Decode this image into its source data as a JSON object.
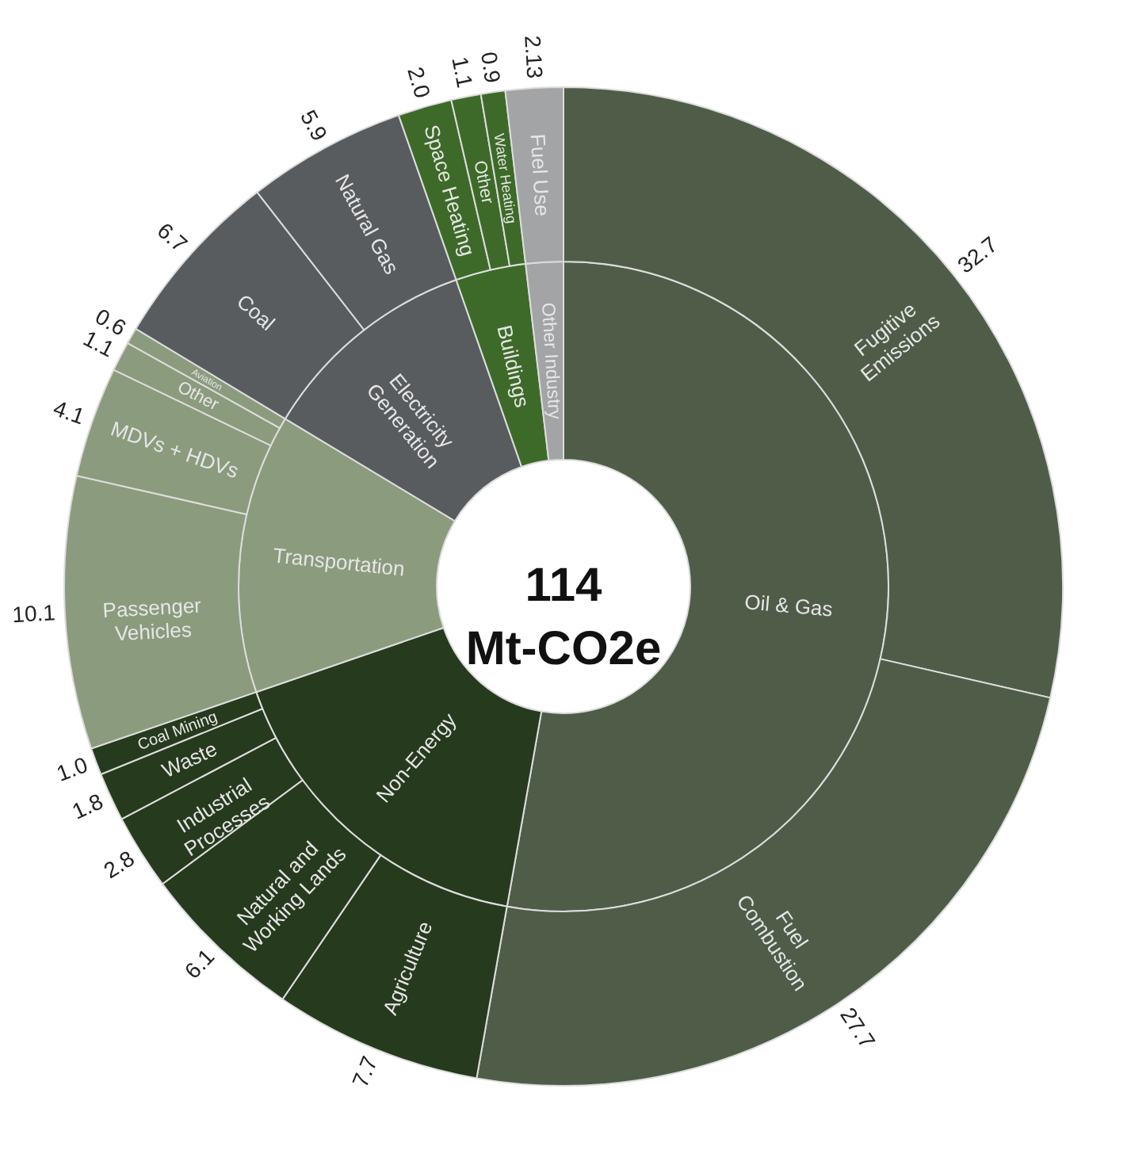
{
  "chart_data": [
    {
      "type": "donut",
      "title": "114 Mt-CO2e",
      "categories": [
        "Oil & Gas",
        "Non-Energy",
        "Transportation",
        "Electricity Generation",
        "Buildings",
        "Other Industry"
      ],
      "values": [
        52.78,
        16.95,
        13.9,
        11.01,
        3.5,
        1.86
      ],
      "colors": [
        "#4f5d48",
        "#263a1e",
        "#8b9b7e",
        "#595c5f",
        "#3d6a28",
        "#a2a4a6"
      ]
    },
    {
      "type": "donut",
      "categories": [
        "Fugitive Emissions",
        "Fuel Combustion",
        "Agriculture",
        "Natural and Working Lands",
        "Industrial Processes",
        "Waste",
        "Coal Mining",
        "Passenger Vehicles",
        "MDVs + HDVs",
        "Other",
        "Aviation",
        "Coal",
        "Natural Gas",
        "Space Heating",
        "Other",
        "Water Heating",
        "Fuel Use"
      ],
      "values": [
        32.7,
        27.7,
        7.7,
        6.1,
        2.8,
        1.8,
        1.0,
        10.1,
        4.1,
        1.1,
        0.6,
        6.7,
        5.9,
        2.0,
        1.1,
        0.9,
        2.13
      ],
      "value_labels": [
        "32.7",
        "27.7",
        "7.7",
        "6.1",
        "2.8",
        "1.8",
        "1.0",
        "10.1",
        "4.1",
        "1.1",
        "0.6",
        "6.7",
        "5.9",
        "2.0",
        "1.1",
        "0.9",
        "2.13"
      ],
      "colors": [
        "#4f5d48",
        "#4f5d48",
        "#263a1e",
        "#263a1e",
        "#263a1e",
        "#263a1e",
        "#263a1e",
        "#8b9b7e",
        "#8b9b7e",
        "#8b9b7e",
        "#8b9b7e",
        "#595c5f",
        "#595c5f",
        "#3d6a28",
        "#3d6a28",
        "#3d6a28",
        "#a2a4a6"
      ]
    }
  ]
}
